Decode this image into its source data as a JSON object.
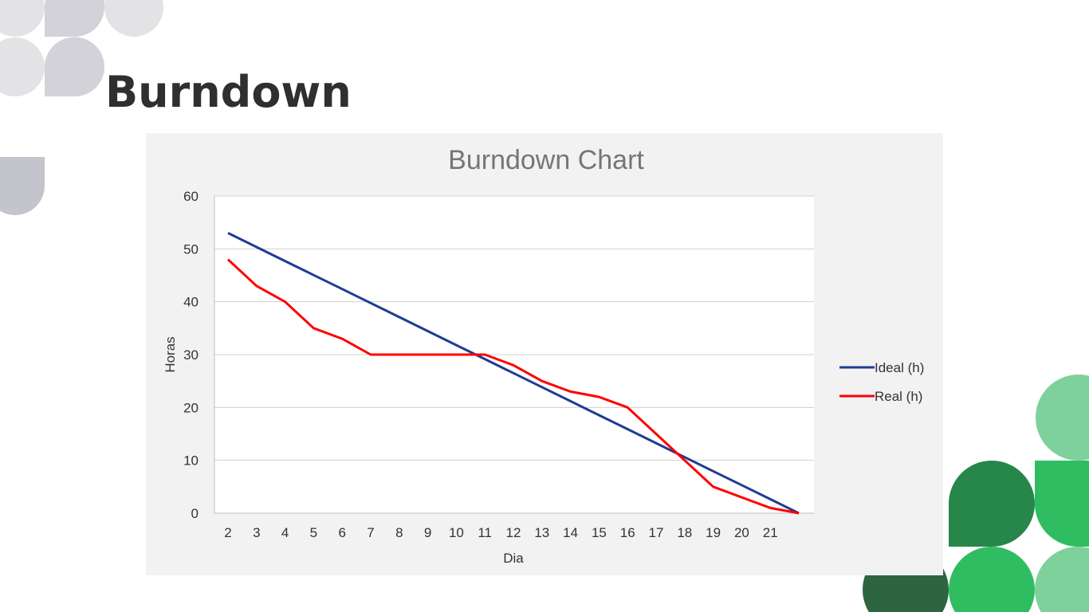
{
  "slide": {
    "title": "Burndown"
  },
  "colors": {
    "title_text": "#2f2f2f",
    "chart_background": "#f2f2f2",
    "plot_background": "#ffffff",
    "gridline": "#d0d0d0",
    "ideal_line": "#1f3c93",
    "real_line": "#ff0000",
    "deco_gray_light": "#e3e3e6",
    "deco_gray_mid": "#d2d2d8",
    "deco_gray_dark": "#c4c4cc",
    "deco_green_light": "#7fd19b",
    "deco_green_mid": "#30bd62",
    "deco_green_dark": "#27864a",
    "deco_green_darkest": "#2e6541"
  },
  "chart_data": {
    "type": "line",
    "title": "Burndown Chart",
    "xlabel": "Dia",
    "ylabel": "Horas",
    "categories": [
      "2",
      "3",
      "4",
      "5",
      "6",
      "7",
      "8",
      "9",
      "10",
      "11",
      "12",
      "13",
      "14",
      "15",
      "16",
      "17",
      "18",
      "19",
      "20",
      "21",
      ""
    ],
    "ylim": [
      0,
      60
    ],
    "yticks": [
      "0",
      "10",
      "20",
      "30",
      "40",
      "50",
      "60"
    ],
    "grid": true,
    "legend_position": "right",
    "series": [
      {
        "name": "Ideal (h)",
        "color": "#1f3c93",
        "values": [
          53,
          50.35,
          47.7,
          45.05,
          42.4,
          39.75,
          37.1,
          34.45,
          31.8,
          29.15,
          26.5,
          23.85,
          21.2,
          18.55,
          15.9,
          13.25,
          10.6,
          7.95,
          5.3,
          2.65,
          0
        ]
      },
      {
        "name": "Real (h)",
        "color": "#ff0000",
        "values": [
          48,
          43,
          40,
          35,
          33,
          30,
          30,
          30,
          30,
          30,
          28,
          25,
          23,
          22,
          20,
          15,
          10,
          5,
          3,
          1,
          0
        ]
      }
    ]
  }
}
